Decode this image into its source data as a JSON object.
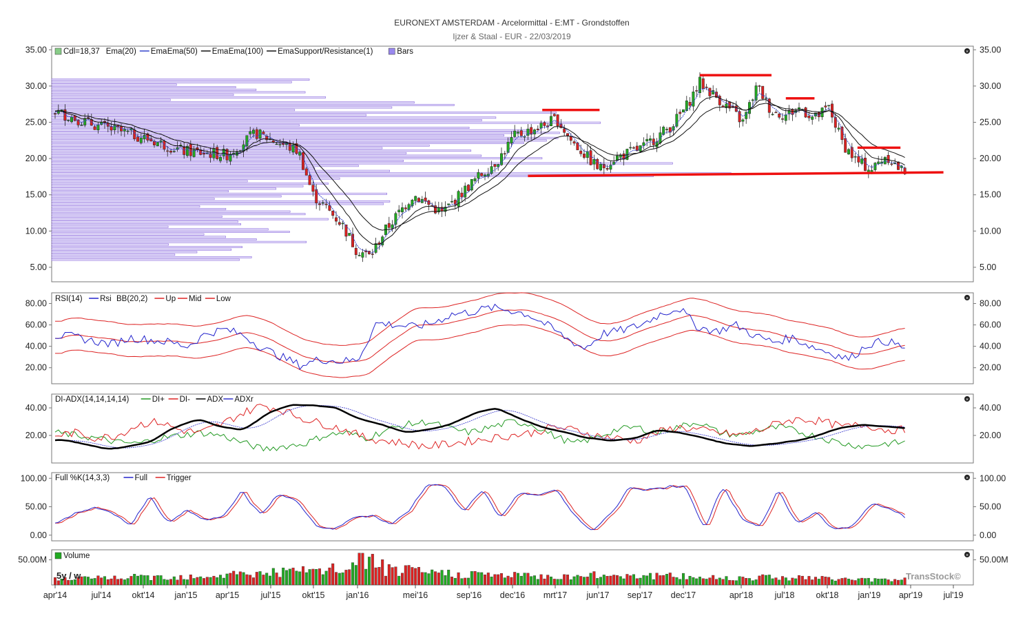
{
  "header": {
    "title": "EURONEXT AMSTERDAM - Arcelormittal - E:MT - Grondstoffen",
    "subtitle": "Ijzer & Staal - EUR - 22/03/2019"
  },
  "x_axis": {
    "labels": [
      "apr'14",
      "jul'14",
      "okt'14",
      "jan'15",
      "apr'15",
      "jul'15",
      "okt'15",
      "jan'16",
      "mei'16",
      "sep'16",
      "dec'16",
      "mrt'17",
      "jun'17",
      "sep'17",
      "dec'17",
      "apr'18",
      "jul'18",
      "okt'18",
      "jan'19",
      "apr'19",
      "jul'19"
    ]
  },
  "watermark": "TransStock©",
  "period_label": "5y / w",
  "colors": {
    "up": "#22aa22",
    "down": "#dd2222",
    "ema20": "#3344cc",
    "ema50": "#111111",
    "ema100": "#111111",
    "sr": "#ee1111",
    "bars": "#8866dd",
    "rsi": "#2222cc",
    "bb": "#dd2222",
    "diplus": "#229922",
    "diminus": "#dd2222",
    "adx": "#000000",
    "adxr": "#3333cc"
  },
  "panels": {
    "price": {
      "legend": [
        "Cdl=18,37",
        "Ema(20)",
        "Ema",
        "Ema(50)",
        "Ema",
        "Ema(100)",
        "Ema",
        "Support/Resistance(1)",
        "Bars"
      ],
      "y_ticks": [
        "35.00",
        "30.00",
        "25.00",
        "20.00",
        "15.00",
        "10.00",
        "5.00"
      ]
    },
    "rsi": {
      "legend": [
        "RSI(14)",
        "Rsi",
        "BB(20,2)",
        "Up",
        "Mid",
        "Low"
      ],
      "y_ticks": [
        "80.00",
        "60.00",
        "40.00",
        "20.00"
      ]
    },
    "adx": {
      "legend": [
        "DI-ADX(14,14,14,14)",
        "DI+",
        "DI-",
        "ADX",
        "ADXr"
      ],
      "y_ticks": [
        "40.00",
        "20.00"
      ]
    },
    "stoch": {
      "legend": [
        "Full %K(14,3,3)",
        "Full",
        "Trigger"
      ],
      "y_ticks": [
        "100.00",
        "50.00",
        "0.00"
      ]
    },
    "volume": {
      "legend": [
        "Volume"
      ],
      "y_ticks": [
        "50.00M"
      ]
    }
  },
  "chart_data": [
    {
      "type": "candlestick",
      "title": "EURONEXT AMSTERDAM - Arcelormittal - E:MT - Grondstoffen",
      "ylim": [
        3,
        35.5
      ],
      "close_label": "Cdl=18,37",
      "price_path": [
        [
          "2014-04",
          26.5
        ],
        [
          "2014-07",
          24.5
        ],
        [
          "2014-10",
          23
        ],
        [
          "2015-01",
          21
        ],
        [
          "2015-04",
          20.5
        ],
        [
          "2015-06",
          23.5
        ],
        [
          "2015-09",
          21
        ],
        [
          "2015-10",
          15
        ],
        [
          "2015-12",
          11
        ],
        [
          "2016-01",
          7.5
        ],
        [
          "2016-02",
          6.5
        ],
        [
          "2016-03",
          10
        ],
        [
          "2016-05",
          15
        ],
        [
          "2016-07",
          12.5
        ],
        [
          "2016-08",
          14.5
        ],
        [
          "2016-09",
          16.5
        ],
        [
          "2016-11",
          20
        ],
        [
          "2016-12",
          23
        ],
        [
          "2017-02",
          24.5
        ],
        [
          "2017-03",
          25.5
        ],
        [
          "2017-04",
          22.5
        ],
        [
          "2017-06",
          18.5
        ],
        [
          "2017-07",
          20
        ],
        [
          "2017-09",
          21.5
        ],
        [
          "2017-11",
          24.5
        ],
        [
          "2017-12",
          27
        ],
        [
          "2018-01",
          30.5
        ],
        [
          "2018-03",
          27
        ],
        [
          "2018-04",
          25
        ],
        [
          "2018-05",
          30
        ],
        [
          "2018-06",
          26.5
        ],
        [
          "2018-07",
          26
        ],
        [
          "2018-08",
          27
        ],
        [
          "2018-09",
          25.5
        ],
        [
          "2018-10",
          27
        ],
        [
          "2018-11",
          22
        ],
        [
          "2018-12",
          19.5
        ],
        [
          "2019-01",
          18.5
        ],
        [
          "2019-02",
          20.5
        ],
        [
          "2019-03",
          18.37
        ]
      ],
      "support_resistance": [
        {
          "from": "2017-02",
          "to": "2017-06",
          "level": 26.7
        },
        {
          "from": "2018-01",
          "to": "2018-06",
          "level": 31.5
        },
        {
          "from": "2018-07",
          "to": "2018-09",
          "level": 28.3
        },
        {
          "from": "2018-12",
          "to": "2019-03",
          "level": 21.5
        },
        {
          "from": "2017-01",
          "to": "2019-06",
          "level_start": 17.6,
          "level_end": 18.1
        }
      ]
    },
    {
      "type": "line",
      "title": "RSI(14)",
      "ylim": [
        5,
        90
      ],
      "series": [
        {
          "name": "Rsi",
          "values": [
            50,
            49,
            45,
            42,
            48,
            46,
            44,
            40,
            52,
            56,
            50,
            38,
            30,
            22,
            28,
            26,
            27,
            62,
            60,
            58,
            62,
            70,
            72,
            76,
            74,
            70,
            60,
            48,
            38,
            52,
            55,
            60,
            70,
            76,
            58,
            54,
            60,
            50,
            44,
            48,
            40,
            34,
            28,
            42,
            45,
            38
          ]
        }
      ]
    },
    {
      "type": "line",
      "title": "DI-ADX(14,14,14,14)",
      "ylim": [
        0,
        50
      ],
      "series": [
        {
          "name": "DI+",
          "values": [
            22,
            20,
            18,
            15,
            14,
            18,
            20,
            22,
            20,
            15,
            10,
            12,
            14,
            20,
            22,
            18,
            24,
            28,
            30,
            25,
            22,
            26,
            30,
            28,
            20,
            14,
            18,
            24,
            26,
            22,
            26,
            30,
            22,
            20,
            24,
            26,
            22,
            18,
            14,
            12,
            14,
            15
          ]
        },
        {
          "name": "DI-",
          "values": [
            20,
            22,
            18,
            20,
            28,
            30,
            24,
            22,
            28,
            36,
            42,
            38,
            32,
            28,
            24,
            18,
            16,
            14,
            12,
            14,
            16,
            18,
            20,
            22,
            26,
            24,
            20,
            18,
            16,
            22,
            26,
            24,
            22,
            20,
            24,
            30,
            32,
            30,
            26,
            28,
            24,
            24
          ]
        },
        {
          "name": "ADX",
          "values": [
            17,
            14,
            10,
            12,
            16,
            26,
            32,
            26,
            24,
            36,
            42,
            42,
            40,
            32,
            28,
            22,
            24,
            28,
            36,
            40,
            32,
            26,
            22,
            18,
            16,
            18,
            24,
            22,
            18,
            14,
            12,
            14,
            16,
            20,
            26,
            28,
            26,
            25
          ]
        }
      ]
    },
    {
      "type": "line",
      "title": "Full %K(14,3,3)",
      "ylim": [
        -10,
        110
      ],
      "series": [
        {
          "name": "Full",
          "values": [
            20,
            40,
            48,
            40,
            15,
            70,
            20,
            45,
            25,
            35,
            78,
            35,
            72,
            60,
            15,
            10,
            30,
            35,
            20,
            40,
            90,
            85,
            40,
            80,
            30,
            75,
            70,
            80,
            35,
            5,
            40,
            85,
            80,
            85,
            88,
            10,
            85,
            30,
            15,
            80,
            20,
            40,
            10,
            15,
            55,
            50,
            30
          ]
        }
      ]
    },
    {
      "type": "bar",
      "title": "Volume",
      "ylim": [
        0,
        70
      ],
      "y_unit": "M",
      "values_m": [
        18,
        20,
        22,
        24,
        25,
        26,
        28,
        30,
        34,
        36,
        40,
        42,
        45,
        48,
        50,
        46,
        44,
        40,
        36,
        34,
        32,
        30,
        28,
        26,
        28,
        30,
        32,
        30,
        28,
        26,
        24,
        22,
        24,
        26,
        24,
        22,
        20,
        18,
        16,
        18,
        20
      ]
    }
  ]
}
